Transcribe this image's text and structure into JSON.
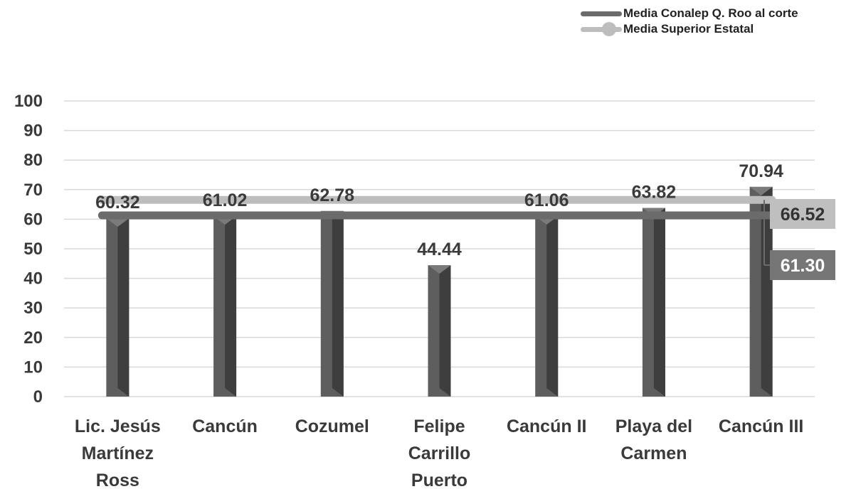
{
  "legend": {
    "series1_label": "Media Conalep Q. Roo al corte",
    "series2_label": "Media Superior Estatal"
  },
  "colors": {
    "bar": "#5e5e5e",
    "bar_dark": "#3e3e3e",
    "bar_light": "#7a7a7a",
    "line_conalep": "#6b6b6b",
    "line_estatal": "#bdbdbd",
    "label_box_conalep": "#767676",
    "label_box_estatal": "#bfbfbf",
    "grid": "#d9d9d9",
    "text": "#3a3a3a"
  },
  "chart_data": {
    "type": "bar",
    "categories": [
      [
        "Lic. Jesús",
        "Martínez",
        "Ross"
      ],
      [
        "Cancún"
      ],
      [
        "Cozumel"
      ],
      [
        "Felipe",
        "Carrillo",
        "Puerto"
      ],
      [
        "Cancún II"
      ],
      [
        "Playa del",
        "Carmen"
      ],
      [
        "Cancún III"
      ]
    ],
    "values": [
      60.32,
      61.02,
      62.78,
      44.44,
      61.06,
      63.82,
      70.94
    ],
    "data_labels": [
      "60.32",
      "61.02",
      "62.78",
      "44.44",
      "61.06",
      "63.82",
      "70.94"
    ],
    "reference_lines": [
      {
        "name": "Media Conalep Q. Roo al corte",
        "value": 61.3,
        "label": "61.30"
      },
      {
        "name": "Media Superior Estatal",
        "value": 66.52,
        "label": "66.52"
      }
    ],
    "yticks": [
      "0",
      "10",
      "20",
      "30",
      "40",
      "50",
      "60",
      "70",
      "80",
      "90",
      "100"
    ],
    "ylim": [
      0,
      100
    ],
    "grid": true,
    "legend_position": "top-right",
    "title": "",
    "xlabel": "",
    "ylabel": ""
  }
}
